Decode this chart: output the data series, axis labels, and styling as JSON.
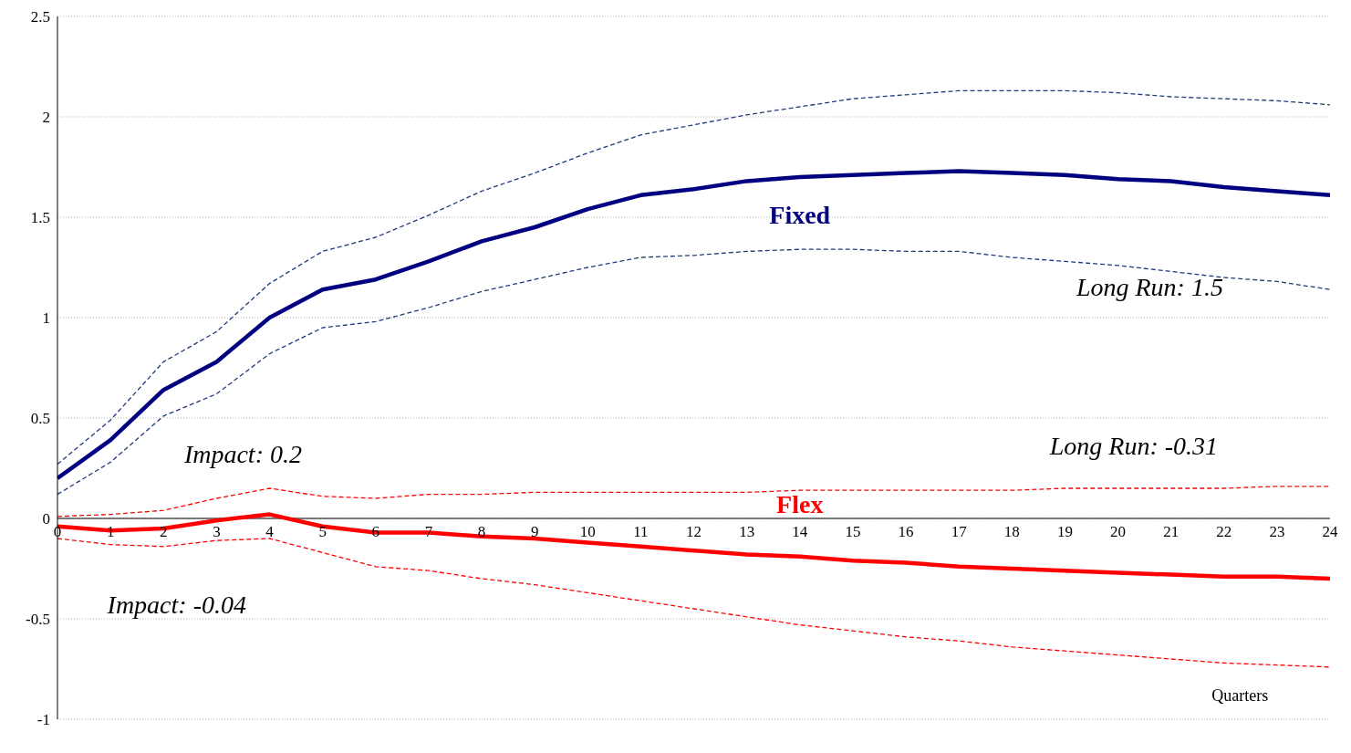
{
  "chart_data": {
    "type": "line",
    "xlabel": "Quarters",
    "x": [
      0,
      1,
      2,
      3,
      4,
      5,
      6,
      7,
      8,
      9,
      10,
      11,
      12,
      13,
      14,
      15,
      16,
      17,
      18,
      19,
      20,
      21,
      22,
      23,
      24
    ],
    "xlim": [
      0,
      24
    ],
    "xticks": [
      0,
      1,
      2,
      3,
      4,
      5,
      6,
      7,
      8,
      9,
      10,
      11,
      12,
      13,
      14,
      15,
      16,
      17,
      18,
      19,
      20,
      21,
      22,
      23,
      24
    ],
    "ylim": [
      -1,
      2.5
    ],
    "yticks": [
      -1,
      -0.5,
      0,
      0.5,
      1,
      1.5,
      2,
      2.5
    ],
    "grid": "y",
    "series": [
      {
        "name": "Fixed",
        "color": "#000080",
        "line_style": "solid",
        "values": [
          0.2,
          0.39,
          0.64,
          0.78,
          1.0,
          1.14,
          1.19,
          1.28,
          1.38,
          1.45,
          1.54,
          1.61,
          1.64,
          1.68,
          1.7,
          1.71,
          1.72,
          1.73,
          1.72,
          1.71,
          1.69,
          1.68,
          1.65,
          1.63,
          1.61
        ]
      },
      {
        "color": "#1f3a7a",
        "line_style": "dashed",
        "values": [
          0.27,
          0.49,
          0.78,
          0.93,
          1.17,
          1.33,
          1.4,
          1.51,
          1.63,
          1.72,
          1.82,
          1.91,
          1.96,
          2.01,
          2.05,
          2.09,
          2.11,
          2.13,
          2.13,
          2.13,
          2.12,
          2.1,
          2.09,
          2.08,
          2.06
        ]
      },
      {
        "color": "#1f3a7a",
        "line_style": "dashed",
        "values": [
          0.12,
          0.28,
          0.51,
          0.62,
          0.82,
          0.95,
          0.98,
          1.05,
          1.13,
          1.19,
          1.25,
          1.3,
          1.31,
          1.33,
          1.34,
          1.34,
          1.33,
          1.33,
          1.3,
          1.28,
          1.26,
          1.23,
          1.2,
          1.18,
          1.14
        ]
      },
      {
        "name": "Flex",
        "color": "#ff0000",
        "line_style": "solid",
        "values": [
          -0.04,
          -0.06,
          -0.05,
          -0.01,
          0.02,
          -0.04,
          -0.07,
          -0.07,
          -0.09,
          -0.1,
          -0.12,
          -0.14,
          -0.16,
          -0.18,
          -0.19,
          -0.21,
          -0.22,
          -0.24,
          -0.25,
          -0.26,
          -0.27,
          -0.28,
          -0.29,
          -0.29,
          -0.3
        ]
      },
      {
        "color": "#ff0000",
        "line_style": "dashed",
        "values": [
          0.01,
          0.02,
          0.04,
          0.1,
          0.15,
          0.11,
          0.1,
          0.12,
          0.12,
          0.13,
          0.13,
          0.13,
          0.13,
          0.13,
          0.14,
          0.14,
          0.14,
          0.14,
          0.14,
          0.15,
          0.15,
          0.15,
          0.15,
          0.16,
          0.16
        ]
      },
      {
        "color": "#ff0000",
        "line_style": "dashed",
        "values": [
          -0.1,
          -0.13,
          -0.14,
          -0.11,
          -0.1,
          -0.17,
          -0.24,
          -0.26,
          -0.3,
          -0.33,
          -0.37,
          -0.41,
          -0.45,
          -0.49,
          -0.53,
          -0.56,
          -0.59,
          -0.61,
          -0.64,
          -0.66,
          -0.68,
          -0.7,
          -0.72,
          -0.73,
          -0.74
        ]
      }
    ],
    "annotations": [
      "Impact: 0.2",
      "Long Run: 1.5",
      "Long Run: -0.31",
      "Impact: -0.04"
    ]
  }
}
